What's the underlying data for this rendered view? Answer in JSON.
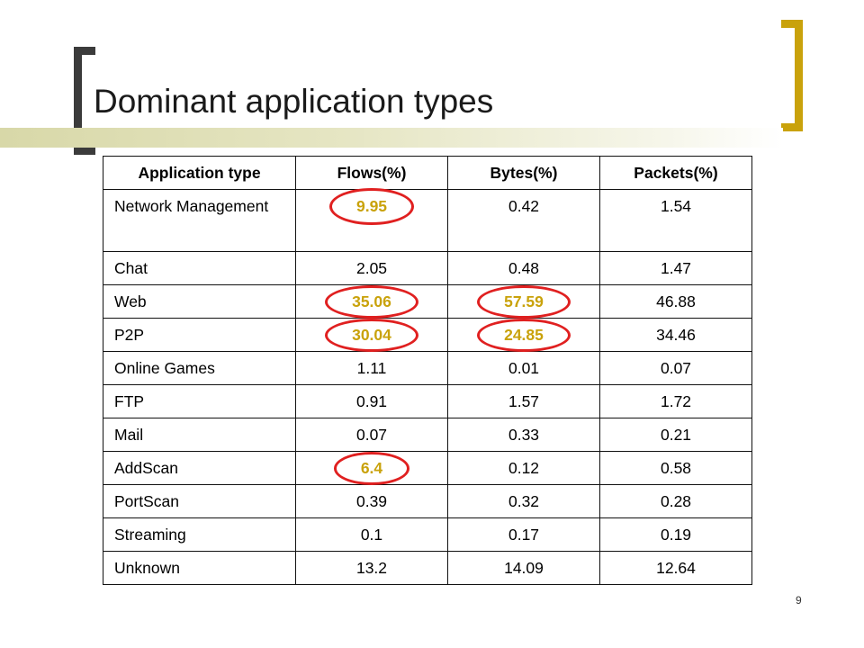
{
  "slide": {
    "title": "Dominant application types",
    "page_number": "9"
  },
  "colors": {
    "highlight_text": "#c9a20b",
    "highlight_circle": "#e02020",
    "bracket_dark": "#3b3b3b",
    "bracket_gold": "#c9a20b"
  },
  "table": {
    "headers": [
      "Application type",
      "Flows(%)",
      "Bytes(%)",
      "Packets(%)"
    ],
    "rows": [
      {
        "app": "Network Management",
        "flows": "9.95",
        "bytes": "0.42",
        "packets": "1.54"
      },
      {
        "app": "Chat",
        "flows": "2.05",
        "bytes": "0.48",
        "packets": "1.47"
      },
      {
        "app": "Web",
        "flows": "35.06",
        "bytes": "57.59",
        "packets": "46.88"
      },
      {
        "app": "P2P",
        "flows": "30.04",
        "bytes": "24.85",
        "packets": "34.46"
      },
      {
        "app": "Online Games",
        "flows": "1.11",
        "bytes": "0.01",
        "packets": "0.07"
      },
      {
        "app": "FTP",
        "flows": "0.91",
        "bytes": "1.57",
        "packets": "1.72"
      },
      {
        "app": "Mail",
        "flows": "0.07",
        "bytes": "0.33",
        "packets": "0.21"
      },
      {
        "app": "AddScan",
        "flows": "6.4",
        "bytes": "0.12",
        "packets": "0.58"
      },
      {
        "app": "PortScan",
        "flows": "0.39",
        "bytes": "0.32",
        "packets": "0.28"
      },
      {
        "app": "Streaming",
        "flows": "0.1",
        "bytes": "0.17",
        "packets": "0.19"
      },
      {
        "app": "Unknown",
        "flows": "13.2",
        "bytes": "14.09",
        "packets": "12.64"
      }
    ],
    "highlighted_cells": [
      "Network Management.flows",
      "Web.flows",
      "Web.bytes",
      "P2P.flows",
      "P2P.bytes",
      "AddScan.flows"
    ]
  }
}
